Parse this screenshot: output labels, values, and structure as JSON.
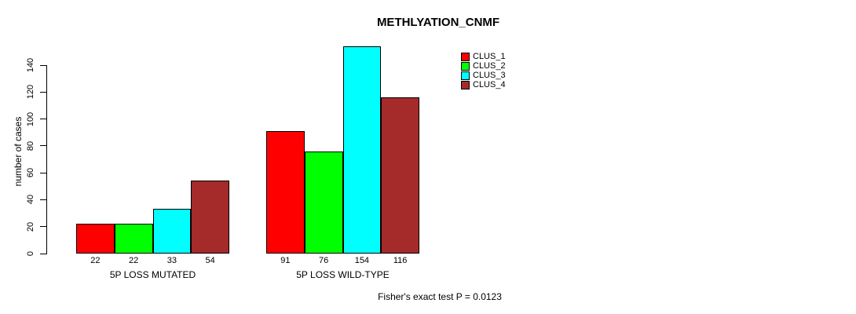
{
  "chart_data": {
    "type": "bar",
    "title": "METHLYATION_CNMF",
    "ylabel": "number of cases",
    "categories": [
      "5P LOSS MUTATED",
      "5P LOSS WILD-TYPE"
    ],
    "series": [
      {
        "name": "CLUS_1",
        "color": "#FF0000",
        "values": [
          22,
          91
        ]
      },
      {
        "name": "CLUS_2",
        "color": "#00FF00",
        "values": [
          22,
          76
        ]
      },
      {
        "name": "CLUS_3",
        "color": "#00FFFF",
        "values": [
          33,
          154
        ]
      },
      {
        "name": "CLUS_4",
        "color": "#A52A2A",
        "values": [
          54,
          116
        ]
      }
    ],
    "y_ticks": [
      0,
      20,
      40,
      60,
      80,
      100,
      120,
      140
    ],
    "ylim": [
      0,
      140
    ],
    "bar_value_labels": true,
    "grid": false,
    "legend_position": "top-right",
    "annotation": "Fisher's exact test P = 0.0123"
  }
}
